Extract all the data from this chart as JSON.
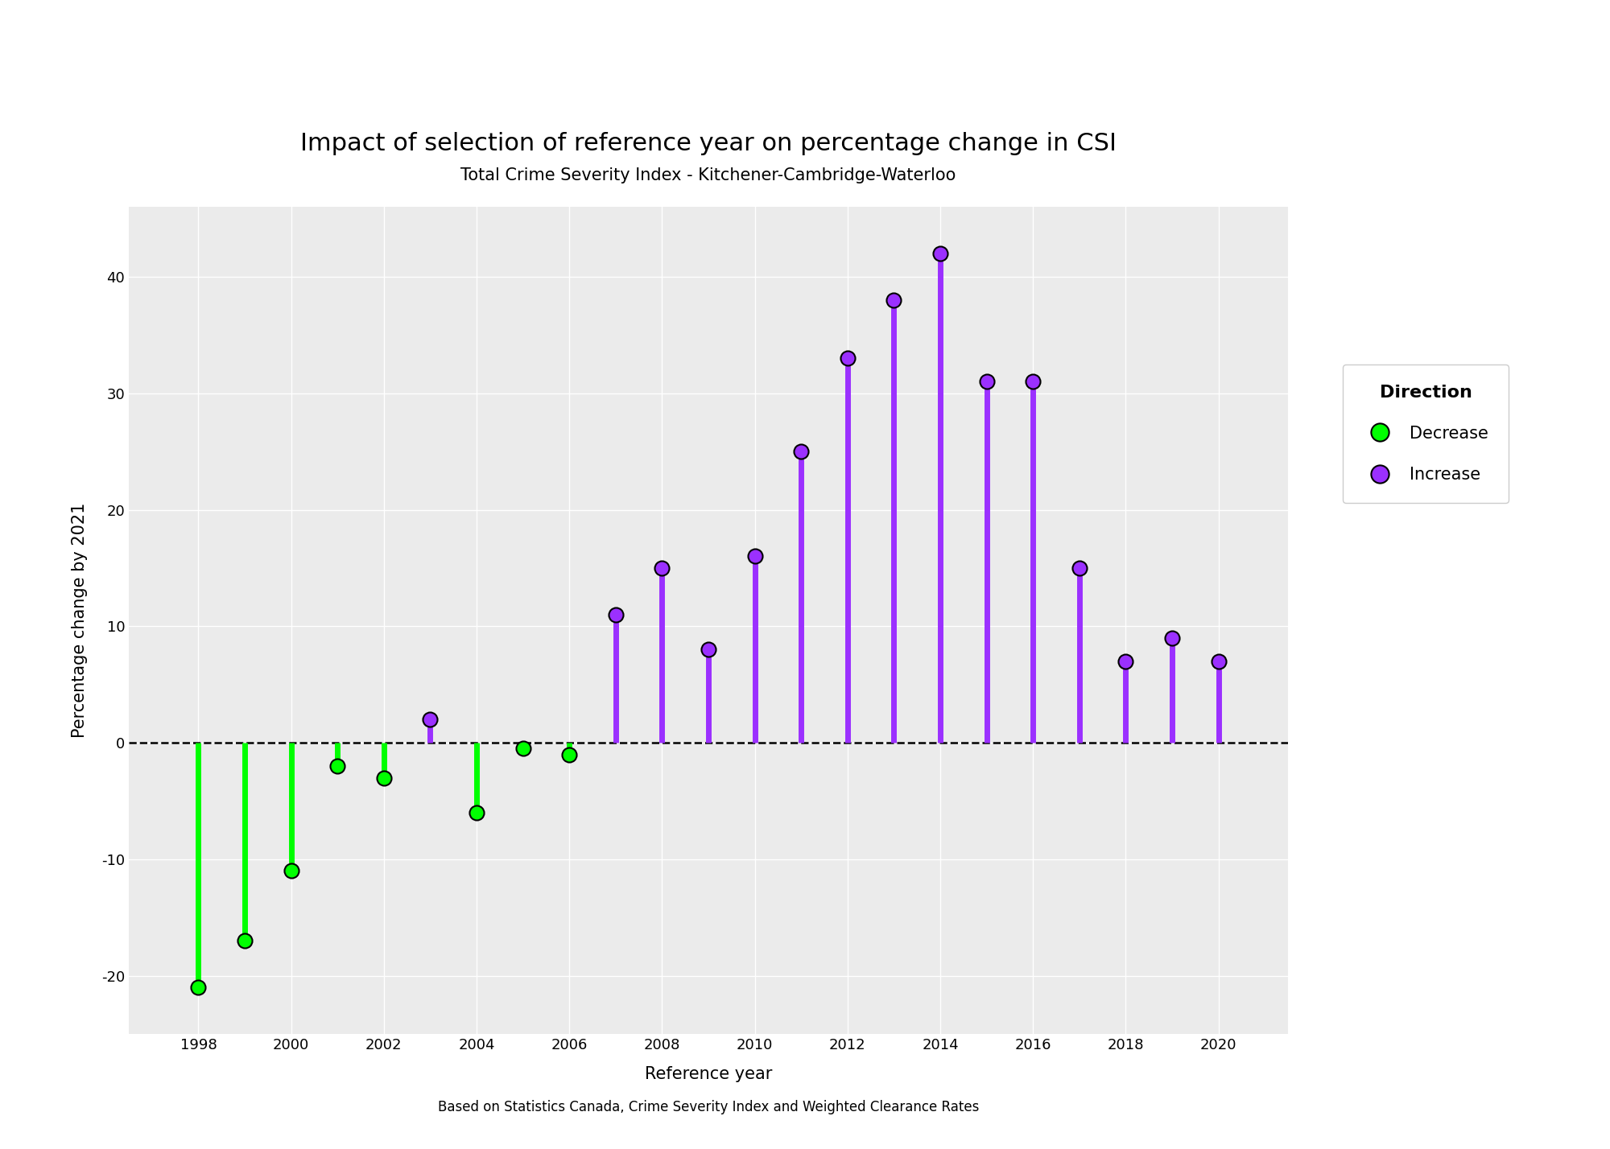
{
  "years": [
    1998,
    1999,
    2000,
    2001,
    2002,
    2003,
    2004,
    2005,
    2006,
    2007,
    2008,
    2009,
    2010,
    2011,
    2012,
    2013,
    2014,
    2015,
    2016,
    2017,
    2018,
    2019,
    2020
  ],
  "values": [
    -21,
    -17,
    -11,
    -2,
    -3,
    2,
    -6,
    -0.5,
    -1,
    11,
    15,
    8,
    16,
    25,
    33,
    38,
    42,
    31,
    31,
    15,
    7,
    9,
    7
  ],
  "directions": [
    "decrease",
    "decrease",
    "decrease",
    "decrease",
    "decrease",
    "increase",
    "decrease",
    "decrease",
    "decrease",
    "increase",
    "increase",
    "increase",
    "increase",
    "increase",
    "increase",
    "increase",
    "increase",
    "increase",
    "increase",
    "increase",
    "increase",
    "increase",
    "increase"
  ],
  "decrease_color": "#00FF00",
  "increase_color": "#9B30FF",
  "title": "Impact of selection of reference year on percentage change in CSI",
  "subtitle": "Total Crime Severity Index - Kitchener-Cambridge-Waterloo",
  "xlabel": "Reference year",
  "ylabel": "Percentage change by 2021",
  "caption": "Based on Statistics Canada, Crime Severity Index and Weighted Clearance Rates",
  "ylim": [
    -25,
    46
  ],
  "xlim": [
    1996.5,
    2021.5
  ],
  "bg_color": "#EBEBEB",
  "grid_color": "white",
  "line_width": 5,
  "marker_size": 13,
  "title_fontsize": 22,
  "subtitle_fontsize": 15,
  "axis_label_fontsize": 15,
  "tick_fontsize": 13,
  "caption_fontsize": 12,
  "legend_title_fontsize": 16,
  "legend_fontsize": 15
}
